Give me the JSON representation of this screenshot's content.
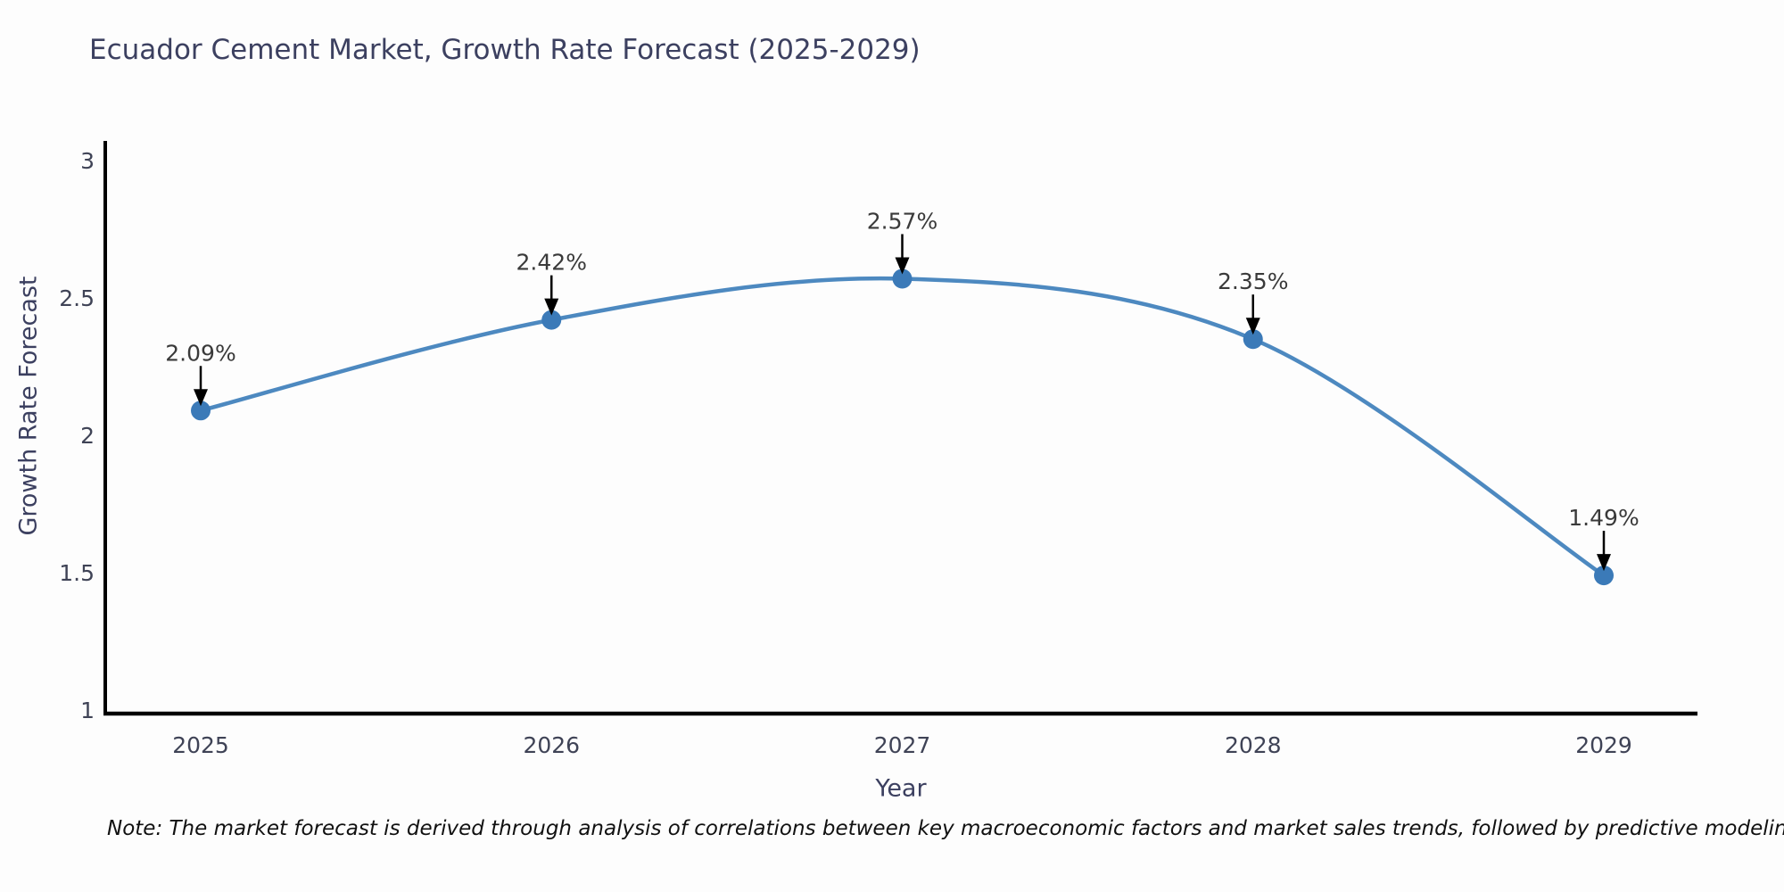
{
  "chart_data": {
    "type": "line",
    "title": "Ecuador Cement Market, Growth Rate Forecast (2025-2029)",
    "xlabel": "Year",
    "ylabel": "Growth Rate Forecast",
    "categories": [
      "2025",
      "2026",
      "2027",
      "2028",
      "2029"
    ],
    "series": [
      {
        "name": "Growth Rate Forecast",
        "values": [
          2.09,
          2.42,
          2.57,
          2.35,
          1.49
        ]
      }
    ],
    "point_labels": [
      "2.09%",
      "2.42%",
      "2.57%",
      "2.35%",
      "1.49%"
    ],
    "ylim": [
      1,
      3
    ],
    "yticks": [
      1,
      1.5,
      2,
      2.5,
      3
    ],
    "ytick_labels": [
      "1",
      "1.5",
      "2",
      "2.5",
      "3"
    ],
    "grid": false,
    "legend_position": "none",
    "line_smoothing": "spline",
    "annotation_style": "down-arrow",
    "colors": {
      "line": "#4d89c0",
      "marker": "#3b7ab8",
      "axis": "#000000",
      "tick_label": "#3f4356",
      "point_label": "#3a3a3a",
      "title": "#3c4060"
    },
    "note": "Note: The market forecast is derived through analysis of correlations between key macroeconomic factors and market sales trends, followed by predictive modeling to project future sales"
  }
}
